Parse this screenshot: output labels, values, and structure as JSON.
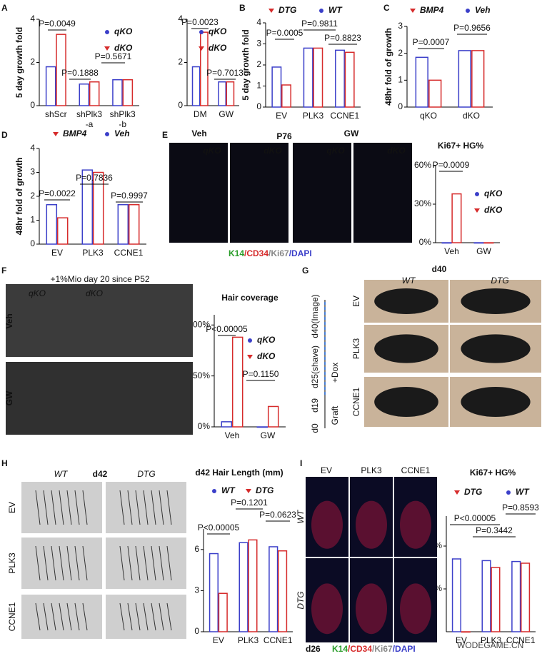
{
  "panel_letters": [
    "A",
    "B",
    "C",
    "D",
    "E",
    "F",
    "G",
    "H",
    "I"
  ],
  "chart_data": [
    {
      "type": "bar",
      "ylabel": "5 day growth fold",
      "categories": [
        "shScr",
        "shPlk3\n-a",
        "shPlk3\n-b"
      ],
      "series": [
        {
          "name": "qKO",
          "color": "#3b3fc9",
          "values": [
            1.8,
            1.0,
            1.2
          ]
        },
        {
          "name": "dKO",
          "color": "#d62b2b",
          "values": [
            3.3,
            1.1,
            1.2
          ]
        }
      ],
      "ylim": [
        0,
        4
      ],
      "yticks": [
        0,
        2,
        4
      ],
      "annotations": [
        "P=0.0049",
        "P=0.1888",
        "P=0.5671"
      ]
    },
    {
      "type": "bar",
      "categories": [
        "DM",
        "GW"
      ],
      "series": [
        {
          "name": "qKO",
          "color": "#3b3fc9",
          "values": [
            1.8,
            1.1
          ]
        },
        {
          "name": "dKO",
          "color": "#d62b2b",
          "values": [
            3.4,
            1.1
          ]
        }
      ],
      "ylim": [
        0,
        4
      ],
      "yticks": [
        0,
        2,
        4
      ],
      "annotations": [
        "P=0.0023",
        "P=0.7013"
      ]
    },
    {
      "type": "bar",
      "ylabel": "5 day growth fold",
      "categories": [
        "EV",
        "PLK3",
        "CCNE1"
      ],
      "series": [
        {
          "name": "WT",
          "color": "#3b3fc9",
          "values": [
            1.9,
            2.8,
            2.7
          ]
        },
        {
          "name": "DTG",
          "color": "#d62b2b",
          "values": [
            1.05,
            2.8,
            2.6
          ]
        }
      ],
      "ylim": [
        0,
        4
      ],
      "yticks": [
        0,
        1,
        2,
        3,
        4
      ],
      "annotations": [
        "P=0.0005",
        "P=0.9811",
        "P=0.8823"
      ]
    },
    {
      "type": "bar",
      "ylabel": "48hr fold of growth",
      "categories": [
        "qKO",
        "dKO"
      ],
      "series": [
        {
          "name": "Veh",
          "color": "#3b3fc9",
          "values": [
            1.85,
            2.1
          ]
        },
        {
          "name": "BMP4",
          "color": "#d62b2b",
          "values": [
            1.0,
            2.1
          ]
        }
      ],
      "ylim": [
        0,
        3
      ],
      "yticks": [
        0,
        1,
        2,
        3
      ],
      "annotations": [
        "P=0.0007",
        "P=0.9656"
      ]
    },
    {
      "type": "bar",
      "ylabel": "48hr fold of growth",
      "categories": [
        "EV",
        "PLK3",
        "CCNE1"
      ],
      "series": [
        {
          "name": "Veh",
          "color": "#3b3fc9",
          "values": [
            1.65,
            3.1,
            1.65
          ]
        },
        {
          "name": "BMP4",
          "color": "#d62b2b",
          "values": [
            1.1,
            3.0,
            1.65
          ]
        }
      ],
      "ylim": [
        0,
        4
      ],
      "yticks": [
        0,
        1,
        2,
        3,
        4
      ],
      "annotations": [
        "P=0.0022",
        "P=0.7836",
        "P=0.9997"
      ]
    },
    {
      "type": "bar",
      "title": "Ki67+ HG%",
      "categories": [
        "Veh",
        "GW"
      ],
      "series": [
        {
          "name": "qKO",
          "color": "#3b3fc9",
          "values": [
            0,
            0
          ]
        },
        {
          "name": "dKO",
          "color": "#d62b2b",
          "values": [
            38,
            0
          ]
        }
      ],
      "ylim": [
        0,
        60
      ],
      "yticks": [
        {
          "value": 0,
          "label": "0%"
        },
        {
          "value": 30,
          "label": "30%"
        },
        {
          "value": 60,
          "label": "60%"
        }
      ],
      "annotations": [
        "P=0.0009"
      ]
    },
    {
      "type": "bar",
      "title": "Hair coverage",
      "categories": [
        "Veh",
        "GW"
      ],
      "series": [
        {
          "name": "qKO",
          "color": "#3b3fc9",
          "values": [
            5,
            0
          ]
        },
        {
          "name": "dKO",
          "color": "#d62b2b",
          "values": [
            88,
            20
          ]
        }
      ],
      "ylim": [
        0,
        110
      ],
      "yticks": [
        {
          "value": 0,
          "label": "0%"
        },
        {
          "value": 50,
          "label": "50%"
        },
        {
          "value": 100,
          "label": "100%"
        }
      ],
      "annotations": [
        "P<0.00005",
        "P=0.1150"
      ]
    },
    {
      "type": "bar",
      "title": "d42 Hair Length (mm)",
      "categories": [
        "EV",
        "PLK3",
        "CCNE1"
      ],
      "series": [
        {
          "name": "WT",
          "color": "#3b3fc9",
          "values": [
            5.7,
            6.5,
            6.2
          ]
        },
        {
          "name": "DTG",
          "color": "#d62b2b",
          "values": [
            2.8,
            6.7,
            5.9
          ]
        }
      ],
      "ylim": [
        0,
        7.5
      ],
      "yticks": [
        0,
        3,
        6
      ],
      "annotations": [
        "P=0.1201",
        "P=0.0623",
        "P<0.00005"
      ]
    },
    {
      "type": "bar",
      "title": "Ki67+ HG%",
      "categories": [
        "EV",
        "PLK3",
        "CCNE1"
      ],
      "series": [
        {
          "name": "WT",
          "color": "#3b3fc9",
          "values": [
            85,
            83,
            82
          ]
        },
        {
          "name": "DTG",
          "color": "#d62b2b",
          "values": [
            0,
            75,
            80
          ]
        }
      ],
      "ylim": [
        0,
        135
      ],
      "yticks": [
        {
          "value": 50,
          "label": "50%"
        },
        {
          "value": 100,
          "label": "100%"
        }
      ],
      "annotations": [
        "P=0.8593",
        "P<0.00005",
        "P=0.3442"
      ]
    }
  ],
  "panel_E_images": {
    "groups": [
      "Veh",
      "P76",
      "GW"
    ],
    "genotypes": [
      "qKO",
      "dKO",
      "qKO",
      "dKO"
    ],
    "stain": [
      "K14",
      "/CD34",
      "/Ki67",
      "/DAPI"
    ]
  },
  "panel_F_images": {
    "title": "+1%Mio day 20 since P52",
    "columns": [
      "qKO",
      "dKO"
    ],
    "rows": [
      "Veh",
      "GW"
    ]
  },
  "panel_G": {
    "title": "d40",
    "columns": [
      "WT",
      "DTG"
    ],
    "rows": [
      "EV",
      "PLK3",
      "CCNE1"
    ],
    "timeline": [
      "d0",
      "d19",
      "d25(shave)",
      "d40(Image)"
    ],
    "graft": "Graft",
    "dox": "+Dox"
  },
  "panel_H_images": {
    "title": "d42",
    "columns": [
      "WT",
      "DTG"
    ],
    "rows": [
      "EV",
      "PLK3",
      "CCNE1"
    ]
  },
  "panel_I_images": {
    "columns": [
      "EV",
      "PLK3",
      "CCNE1"
    ],
    "rows": [
      "WT",
      "DTG"
    ],
    "day": "d26",
    "stain": [
      "K14",
      "/CD34",
      "/Ki67",
      "/DAPI"
    ]
  },
  "watermark": "WODEGAME.CN"
}
